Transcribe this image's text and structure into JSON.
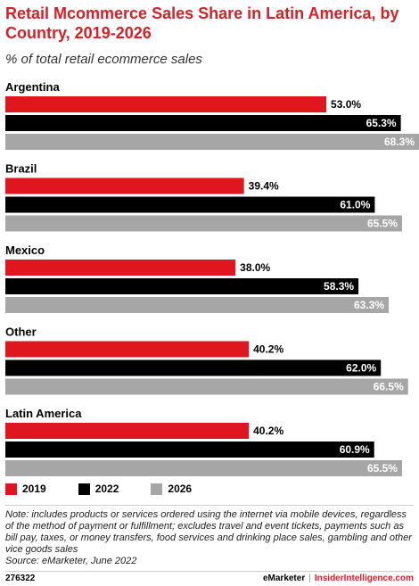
{
  "chart_data": {
    "type": "bar",
    "orientation": "horizontal",
    "title": "Retail Mcommerce Sales Share in Latin America, by Country, 2019-2026",
    "subtitle": "% of total retail ecommerce sales",
    "categories": [
      "Argentina",
      "Brazil",
      "Mexico",
      "Other",
      "Latin America"
    ],
    "series": [
      {
        "name": "2019",
        "color": "#e0161f",
        "values": [
          53.0,
          39.4,
          38.0,
          40.2,
          40.2
        ]
      },
      {
        "name": "2022",
        "color": "#000000",
        "values": [
          65.3,
          61.0,
          58.3,
          62.0,
          60.9
        ]
      },
      {
        "name": "2026",
        "color": "#a6a6a6",
        "values": [
          68.3,
          65.5,
          63.3,
          66.5,
          65.5
        ]
      }
    ],
    "value_suffix": "%",
    "xlim": [
      0,
      70
    ],
    "grid": false,
    "legend_position": "bottom-left"
  },
  "header": {
    "title": "Retail Mcommerce Sales Share in Latin America, by Country, 2019-2026",
    "subtitle": "% of total retail ecommerce sales"
  },
  "note": "Note: includes products or services ordered using the internet via mobile devices, regardless of the method of payment or fulfillment; excludes travel and event tickets, payments such as bill pay, taxes, or money transfers, food services and drinking place sales, gambling and other vice goods sales",
  "source": "Source: eMarketer, June 2022",
  "footer": {
    "id": "276322",
    "brand": "eMarketer",
    "separator": "|",
    "site": "InsiderIntelligence.com"
  }
}
